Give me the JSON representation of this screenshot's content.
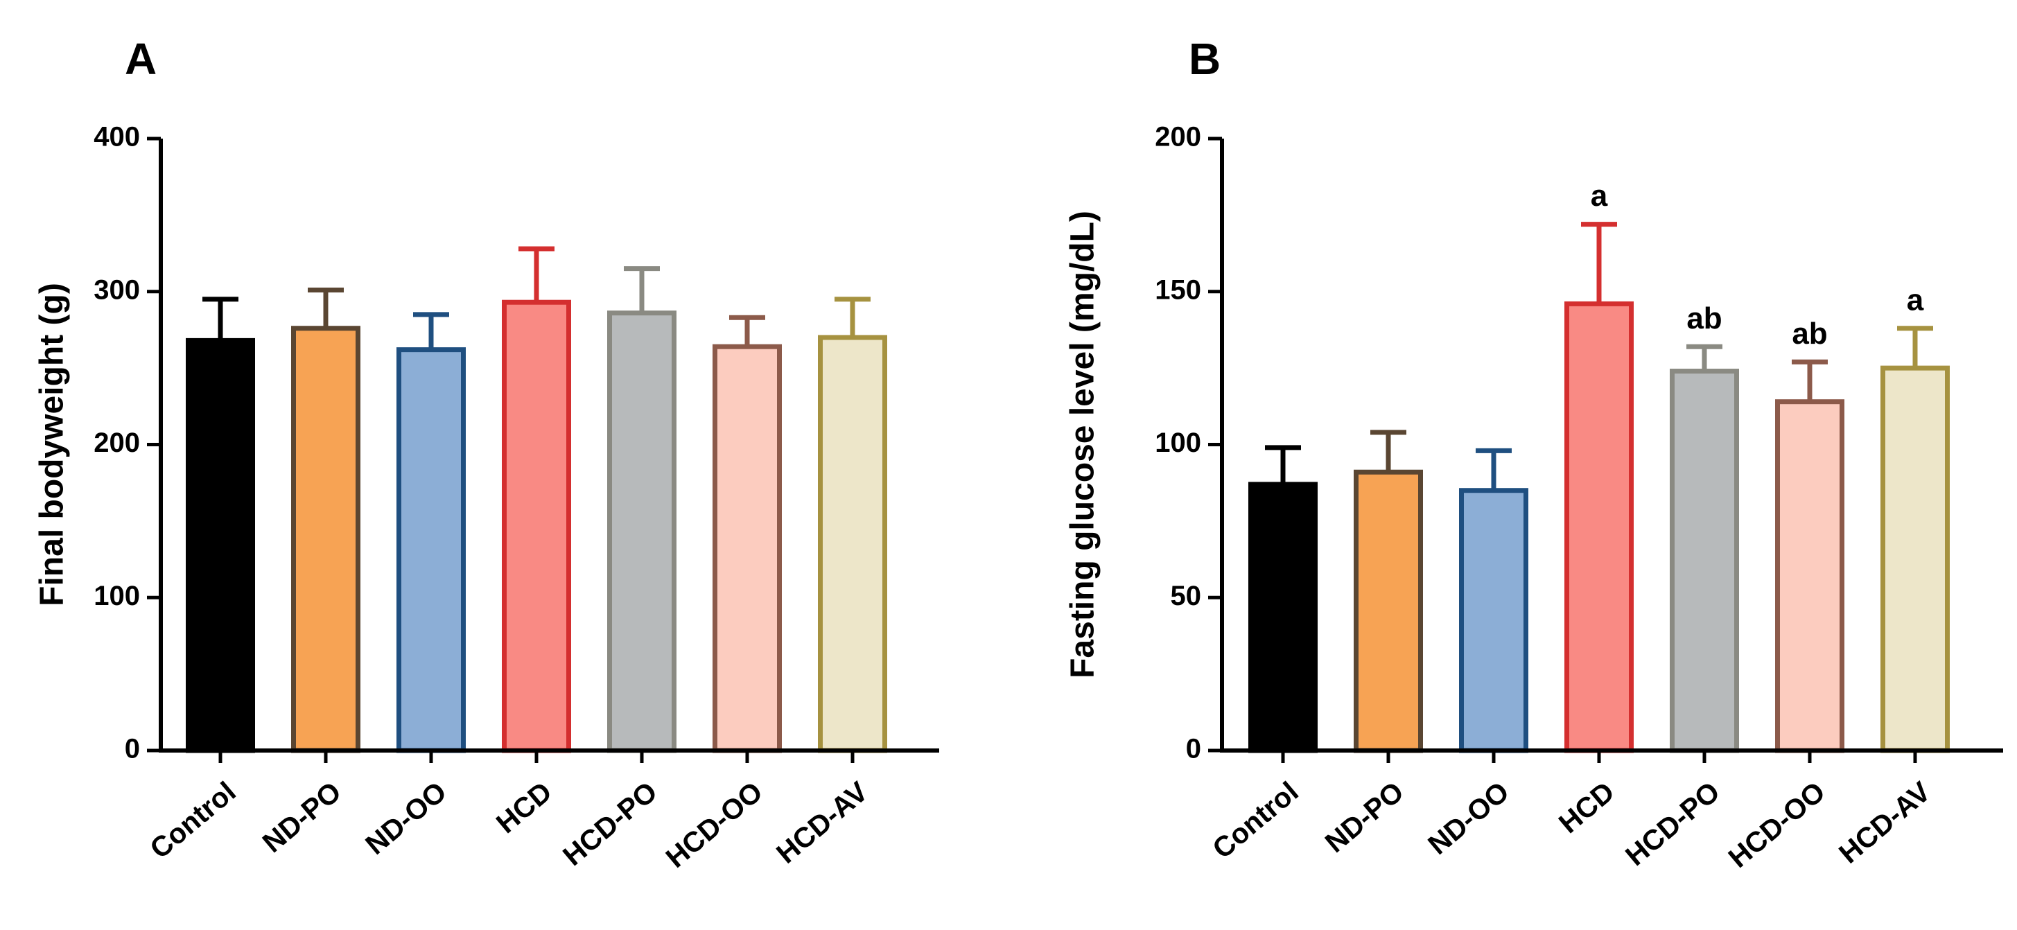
{
  "chart_data": [
    {
      "type": "bar",
      "panel": "A",
      "title": "",
      "xlabel": "",
      "ylabel": "Final bodyweight (g)",
      "ylim": [
        0,
        400
      ],
      "yticks": [
        0,
        100,
        200,
        300,
        400
      ],
      "categories": [
        "Control",
        "ND-PO",
        "ND-OO",
        "HCD",
        "HCD-PO",
        "HCD-OO",
        "HCD-AV"
      ],
      "values": [
        268,
        276,
        262,
        293,
        286,
        264,
        270
      ],
      "errors": [
        27,
        25,
        23,
        35,
        29,
        19,
        25
      ],
      "annotations": [
        "",
        "",
        "",
        "",
        "",
        "",
        ""
      ]
    },
    {
      "type": "bar",
      "panel": "B",
      "title": "",
      "xlabel": "",
      "ylabel": "Fasting glucose level (mg/dL)",
      "ylim": [
        0,
        200
      ],
      "yticks": [
        0,
        50,
        100,
        150,
        200
      ],
      "categories": [
        "Control",
        "ND-PO",
        "ND-OO",
        "HCD",
        "HCD-PO",
        "HCD-OO",
        "HCD-AV"
      ],
      "values": [
        87,
        91,
        85,
        146,
        124,
        114,
        125
      ],
      "errors": [
        12,
        13,
        13,
        26,
        8,
        13,
        13
      ],
      "annotations": [
        "",
        "",
        "",
        "a",
        "ab",
        "ab",
        "a"
      ]
    }
  ],
  "styles": {
    "fills": [
      "#000000",
      "#f7a354",
      "#8caed6",
      "#f98a84",
      "#b7babb",
      "#fcccbf",
      "#ede6c9"
    ],
    "strokes": [
      "#000000",
      "#5a4632",
      "#1f4f80",
      "#d42f2f",
      "#8a8a82",
      "#8c5a4a",
      "#a69240"
    ]
  }
}
